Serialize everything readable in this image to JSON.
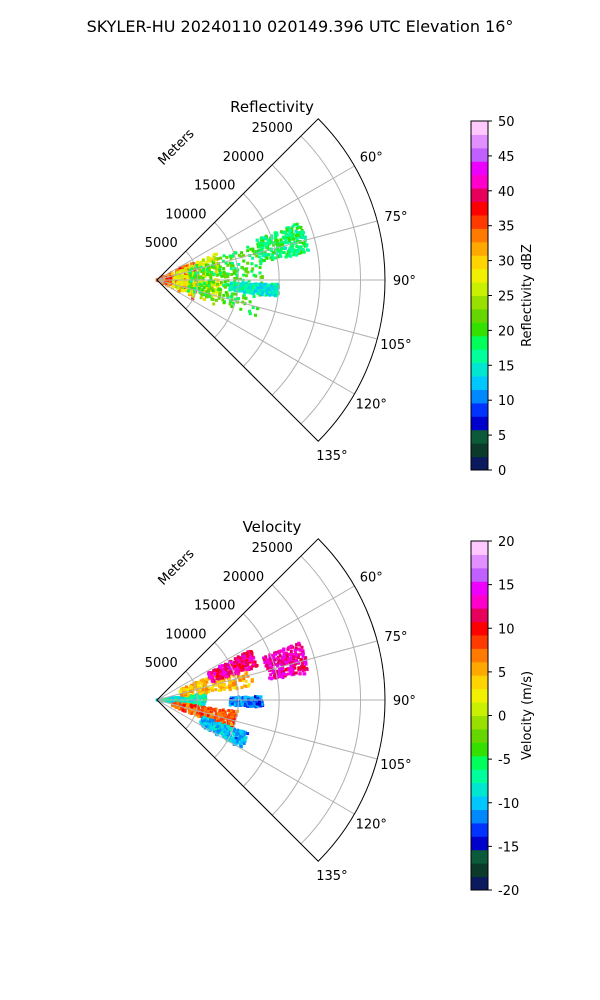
{
  "figure": {
    "suptitle": "SKYLER-HU  20240110  020149.396 UTC Elevation 16°"
  },
  "chart_data": [
    {
      "type": "heatmap",
      "title": "Reflectivity",
      "radial_label": "Meters",
      "radial_ticks": [
        5000,
        10000,
        15000,
        20000,
        25000
      ],
      "range_max_m": 28000,
      "angular_ticks_deg": [
        60,
        75,
        90,
        105,
        120,
        135
      ],
      "angular_span_deg": [
        45,
        135
      ],
      "grid": true,
      "colorbar": {
        "label": "Reflectivity dBZ",
        "min": 0,
        "max": 50,
        "ticks": [
          0,
          5,
          10,
          15,
          20,
          25,
          30,
          35,
          40,
          45,
          50
        ],
        "palette": [
          "#0b1a5e",
          "#0b3a2a",
          "#0b5a3a",
          "#0000cc",
          "#0033ff",
          "#0088ff",
          "#00c8ff",
          "#00e6d0",
          "#00ff9c",
          "#00ff5a",
          "#33e000",
          "#66d600",
          "#99e000",
          "#c8f000",
          "#f0f000",
          "#ffd400",
          "#ffa800",
          "#ff7a00",
          "#ff3a00",
          "#ff0000",
          "#e6005c",
          "#ff00cc",
          "#ee00ff",
          "#c060ff",
          "#e090ff",
          "#ffc8ff"
        ]
      },
      "regions": [
        {
          "r_m": [
            0,
            5000
          ],
          "az_deg": [
            62,
            118
          ],
          "value_dbz": 35
        },
        {
          "r_m": [
            2000,
            8000
          ],
          "az_deg": [
            66,
            114
          ],
          "value_dbz": 27
        },
        {
          "r_m": [
            4000,
            13000
          ],
          "az_deg": [
            70,
            110
          ],
          "value_dbz": 20
        },
        {
          "r_m": [
            13000,
            19000
          ],
          "az_deg": [
            68,
            80
          ],
          "value_dbz": 18
        },
        {
          "r_m": [
            9000,
            15000
          ],
          "az_deg": [
            92,
            98
          ],
          "value_dbz": 15
        }
      ]
    },
    {
      "type": "heatmap",
      "title": "Velocity",
      "radial_label": "Meters",
      "radial_ticks": [
        5000,
        10000,
        15000,
        20000,
        25000
      ],
      "range_max_m": 28000,
      "angular_ticks_deg": [
        60,
        75,
        90,
        105,
        120,
        135
      ],
      "angular_span_deg": [
        45,
        135
      ],
      "grid": true,
      "colorbar": {
        "label": "Velocity (m/s)",
        "min": -20,
        "max": 20,
        "ticks": [
          -20,
          -15,
          -10,
          -5,
          0,
          5,
          10,
          15,
          20
        ],
        "palette": [
          "#0b1a5e",
          "#0b3a2a",
          "#0b5a3a",
          "#0000cc",
          "#0033ff",
          "#0088ff",
          "#00c8ff",
          "#00e6d0",
          "#00ff9c",
          "#00ff5a",
          "#33e000",
          "#66d600",
          "#99e000",
          "#c8f000",
          "#f0f000",
          "#ffd400",
          "#ffa800",
          "#ff7a00",
          "#ff3a00",
          "#ff0000",
          "#e6005c",
          "#ff00cc",
          "#ee00ff",
          "#c060ff",
          "#e090ff",
          "#ffc8ff"
        ]
      },
      "regions": [
        {
          "r_m": [
            0,
            6000
          ],
          "az_deg": [
            82,
            98
          ],
          "value_ms": -8
        },
        {
          "r_m": [
            3000,
            12000
          ],
          "az_deg": [
            66,
            82
          ],
          "value_ms": 5
        },
        {
          "r_m": [
            7000,
            13000
          ],
          "az_deg": [
            62,
            72
          ],
          "value_ms": 12
        },
        {
          "r_m": [
            14000,
            19000
          ],
          "az_deg": [
            68,
            80
          ],
          "value_ms": 13
        },
        {
          "r_m": [
            2000,
            10000
          ],
          "az_deg": [
            98,
            112
          ],
          "value_ms": 8
        },
        {
          "r_m": [
            6000,
            12000
          ],
          "az_deg": [
            110,
            120
          ],
          "value_ms": -10
        },
        {
          "r_m": [
            9000,
            13000
          ],
          "az_deg": [
            88,
            94
          ],
          "value_ms": -12
        }
      ]
    }
  ]
}
